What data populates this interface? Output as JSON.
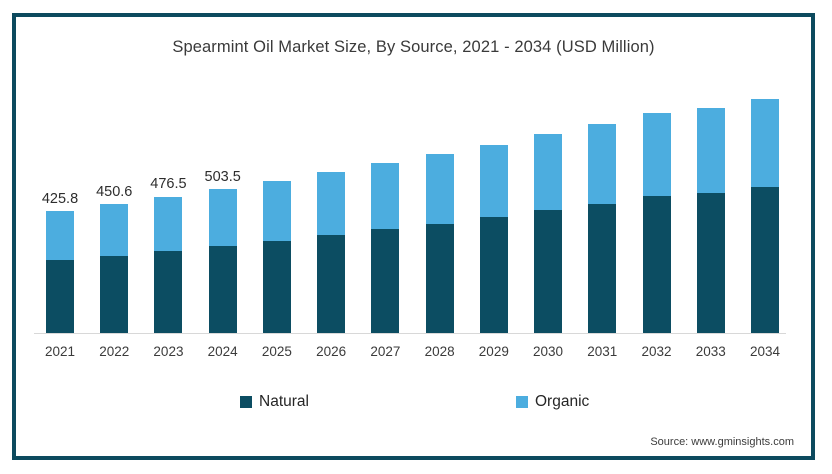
{
  "title": "Spearmint Oil Market Size, By Source, 2021 - 2034 (USD Million)",
  "source_note": "Source: www.gminsights.com",
  "legend": {
    "items": [
      {
        "label": "Natural",
        "color": "#0c4d62"
      },
      {
        "label": "Organic",
        "color": "#4caddf"
      }
    ]
  },
  "colors": {
    "frame_border": "#0d4a5e",
    "axis_line": "#d8d8d8",
    "background": "#ffffff",
    "natural_bar": "#0c4d62",
    "organic_bar": "#4caddf",
    "title_text": "#3a3a3a"
  },
  "chart_data": {
    "type": "bar",
    "stacked": true,
    "title": "Spearmint Oil Market Size, By Source, 2021 - 2034 (USD Million)",
    "units": "USD Million",
    "xlabel": "",
    "ylabel": "",
    "grid": false,
    "legend_position": "bottom",
    "ylim": [
      0,
      870
    ],
    "categories": [
      "2021",
      "2022",
      "2023",
      "2024",
      "2025",
      "2026",
      "2027",
      "2028",
      "2029",
      "2030",
      "2031",
      "2032",
      "2033",
      "2034"
    ],
    "series": [
      {
        "name": "Natural",
        "color": "#0c4d62",
        "values": [
          255.5,
          270.5,
          287.0,
          305.0,
          321.0,
          341.5,
          361.5,
          381.5,
          404.5,
          429.5,
          451.0,
          476.5,
          487.0,
          508.0
        ]
      },
      {
        "name": "Organic",
        "color": "#4caddf",
        "values": [
          170.3,
          180.1,
          189.5,
          198.5,
          209.5,
          219.0,
          231.0,
          242.0,
          252.0,
          263.5,
          278.5,
          291.5,
          299.5,
          307.5
        ]
      }
    ],
    "totals": [
      425.8,
      450.6,
      476.5,
      503.5,
      530.5,
      560.5,
      592.5,
      623.5,
      656.5,
      693.0,
      729.5,
      768.0,
      786.5,
      815.5
    ],
    "total_labels": [
      "425.8",
      "450.6",
      "476.5",
      "503.5",
      "",
      "",
      "",
      "",
      "",
      "",
      "",
      "",
      "",
      ""
    ]
  }
}
